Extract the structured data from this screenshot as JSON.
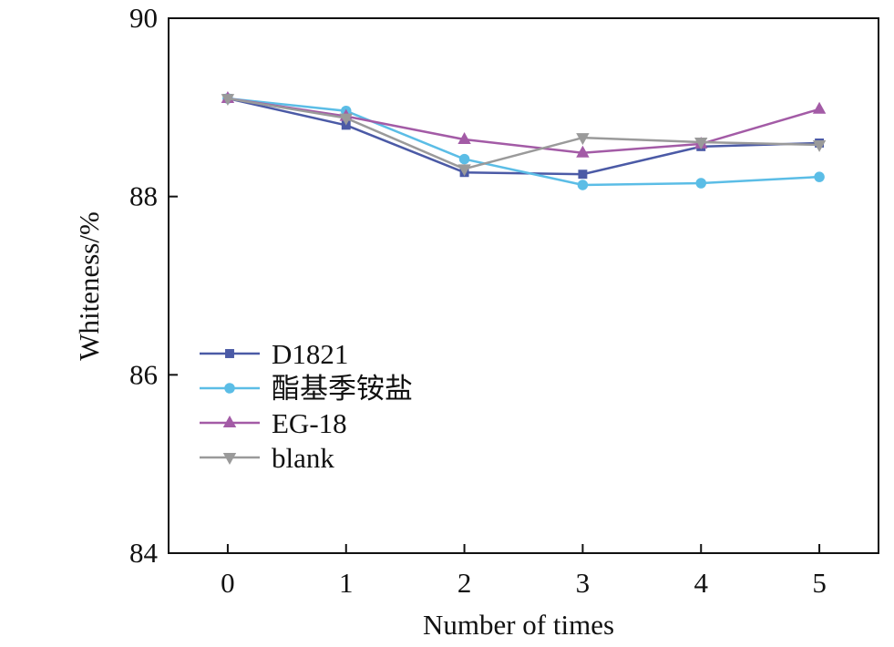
{
  "chart_data": {
    "type": "line",
    "title": "",
    "xlabel": "Number of times",
    "ylabel": "Whiteness/%",
    "x": [
      0,
      1,
      2,
      3,
      4,
      5
    ],
    "x_tick_labels": [
      "0",
      "1",
      "2",
      "3",
      "4",
      "5"
    ],
    "xlim": [
      -0.5,
      5.5
    ],
    "ylim": [
      84,
      90
    ],
    "y_ticks": [
      84,
      86,
      88,
      90
    ],
    "y_tick_labels": [
      "84",
      "86",
      "88",
      "90"
    ],
    "grid": false,
    "legend_position": "lower-left",
    "series": [
      {
        "name": "D1821",
        "color": "#4b5aa6",
        "marker": "square",
        "values": [
          89.1,
          88.8,
          88.27,
          88.25,
          88.56,
          88.6
        ]
      },
      {
        "name": "酯基季铵盐",
        "color": "#5bbde6",
        "marker": "circle",
        "values": [
          89.1,
          88.96,
          88.42,
          88.13,
          88.15,
          88.22
        ]
      },
      {
        "name": "EG-18",
        "color": "#a35ba6",
        "marker": "triangle-up",
        "values": [
          89.1,
          88.9,
          88.64,
          88.49,
          88.59,
          88.98
        ]
      },
      {
        "name": "blank",
        "color": "#9a9a9a",
        "marker": "triangle-down",
        "values": [
          89.1,
          88.88,
          88.31,
          88.66,
          88.61,
          88.58
        ]
      }
    ]
  }
}
